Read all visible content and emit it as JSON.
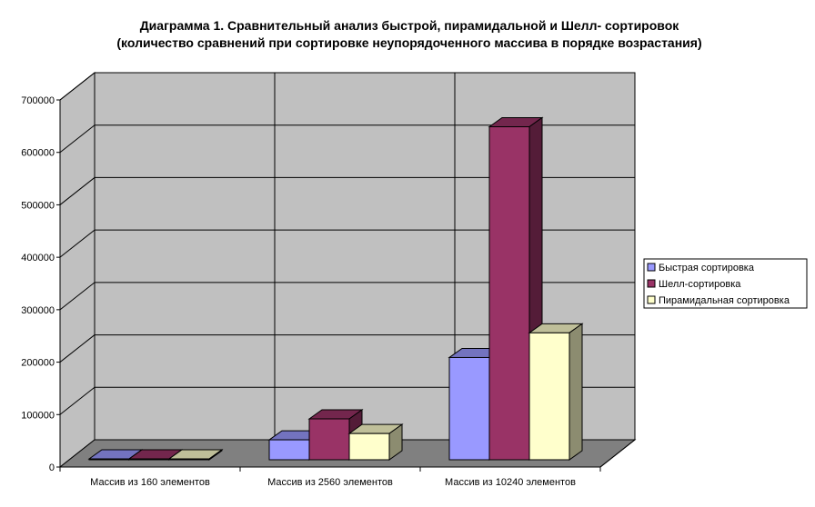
{
  "chart_data": {
    "type": "bar",
    "title": "Диаграмма 1. Сравнительный анализ быстрой, пирамидальной и Шелл- сортировок",
    "subtitle": "(количество сравнений при сортировке неупорядоченного массива в порядке возрастания)",
    "categories": [
      "Массив из 160 элементов",
      "Массив из 2560 элементов",
      "Массив из 10240 элементов"
    ],
    "series": [
      {
        "name": "Быстрая сортировка",
        "values": [
          1000,
          38000,
          195000
        ],
        "color": "#9999ff"
      },
      {
        "name": "Шелл-сортировка",
        "values": [
          1500,
          78000,
          635000
        ],
        "color": "#993366"
      },
      {
        "name": "Пирамидальная сортировка",
        "values": [
          1300,
          50000,
          242000
        ],
        "color": "#ffffcc"
      }
    ],
    "ylim": [
      0,
      700000
    ],
    "yticks": [
      "0",
      "100000",
      "200000",
      "300000",
      "400000",
      "500000",
      "600000",
      "700000"
    ],
    "grid": true,
    "legend": "right",
    "colors": {
      "wall": "#c0c0c0",
      "floor": "#808080",
      "grid": "#000000"
    }
  }
}
